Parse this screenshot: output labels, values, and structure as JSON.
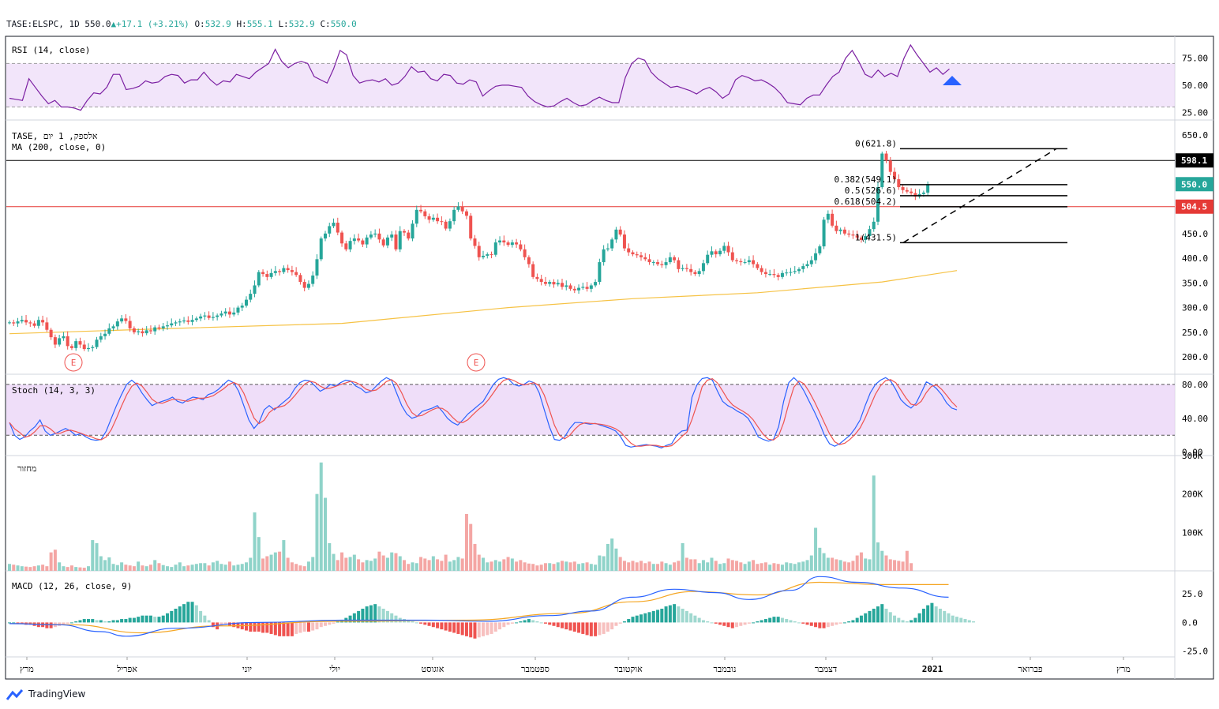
{
  "header": {
    "symbol": "TASE:ELSPC, 1D",
    "last": "550.0",
    "change": "+17.1 (+3.21%)",
    "open_label": "O:",
    "open": "532.9",
    "high_label": "H:",
    "high": "555.1",
    "low_label": "L:",
    "low": "532.9",
    "close_label": "C:",
    "close": "550.0"
  },
  "branding": {
    "name": "TradingView"
  },
  "colors": {
    "up": "#26a69a",
    "down": "#ef5350",
    "ma": "#f6c244",
    "rsi": "#7b1fa2",
    "band": "#e9d3f7",
    "macd": "#2962ff",
    "signal": "#f5a623"
  },
  "x_axis": {
    "labels": [
      "מרץ",
      "אפריל",
      "יוני",
      "יולי",
      "אוגוסט",
      "ספטמבר",
      "אוקטובר",
      "נובמבר",
      "דצמבר",
      "2021",
      "פברואר",
      "מרץ"
    ],
    "bold_label": "2021"
  },
  "chart_data": [
    {
      "name": "rsi",
      "type": "line",
      "title": "RSI (14, close)",
      "ylim": [
        18,
        95
      ],
      "ticks": [
        "75.00",
        "50.00",
        "25.00"
      ],
      "band": [
        30,
        70
      ],
      "values": [
        38,
        37,
        36,
        56,
        48,
        40,
        33,
        36,
        30,
        30,
        29,
        27,
        36,
        43,
        42,
        48,
        60,
        60,
        46,
        47,
        49,
        54,
        52,
        53,
        58,
        60,
        59,
        52,
        55,
        55,
        62,
        55,
        50,
        54,
        53,
        60,
        58,
        56,
        62,
        66,
        70,
        83,
        72,
        66,
        70,
        72,
        70,
        58,
        55,
        52,
        65,
        82,
        78,
        59,
        52,
        54,
        55,
        53,
        56,
        50,
        52,
        58,
        67,
        62,
        63,
        56,
        54,
        60,
        59,
        52,
        51,
        55,
        53,
        40,
        45,
        49,
        50,
        50,
        49,
        48,
        40,
        35,
        32,
        30,
        31,
        35,
        38,
        34,
        31,
        32,
        36,
        39,
        36,
        34,
        34,
        57,
        70,
        75,
        73,
        62,
        56,
        52,
        48,
        49,
        47,
        45,
        42,
        46,
        48,
        44,
        38,
        42,
        55,
        59,
        57,
        54,
        55,
        52,
        48,
        42,
        34,
        33,
        32,
        38,
        41,
        41,
        50,
        58,
        62,
        75,
        82,
        72,
        60,
        57,
        64,
        58,
        61,
        58,
        75,
        87,
        78,
        70,
        62,
        66,
        60,
        65
      ]
    },
    {
      "name": "price",
      "type": "candlestick",
      "legend": [
        "TASE, אלספק, 1 יום",
        "MA (200, close, 0)"
      ],
      "ylim": [
        165,
        680
      ],
      "ticks": [
        "650.0",
        "450.0",
        "400.0",
        "350.0",
        "300.0",
        "250.0",
        "200.0"
      ],
      "closes": [
        270,
        268,
        272,
        275,
        270,
        268,
        263,
        275,
        270,
        255,
        240,
        225,
        238,
        242,
        222,
        218,
        232,
        225,
        216,
        218,
        220,
        235,
        242,
        247,
        258,
        262,
        272,
        278,
        273,
        258,
        250,
        252,
        248,
        254,
        252,
        260,
        258,
        262,
        264,
        268,
        270,
        272,
        274,
        271,
        275,
        278,
        282,
        284,
        279,
        281,
        284,
        288,
        292,
        286,
        290,
        300,
        304,
        316,
        328,
        345,
        372,
        368,
        362,
        370,
        374,
        372,
        380,
        376,
        372,
        366,
        352,
        340,
        348,
        365,
        398,
        440,
        450,
        465,
        472,
        452,
        430,
        418,
        435,
        440,
        436,
        428,
        442,
        448,
        450,
        438,
        426,
        442,
        448,
        418,
        455,
        452,
        440,
        470,
        498,
        495,
        485,
        478,
        482,
        475,
        474,
        460,
        475,
        498,
        505,
        495,
        486,
        440,
        425,
        402,
        405,
        408,
        407,
        432,
        436,
        432,
        427,
        432,
        428,
        418,
        402,
        388,
        362,
        358,
        352,
        348,
        352,
        347,
        350,
        342,
        345,
        338,
        335,
        340,
        342,
        338,
        345,
        352,
        392,
        418,
        420,
        438,
        458,
        448,
        420,
        412,
        408,
        406,
        402,
        398,
        392,
        392,
        388,
        386,
        392,
        402,
        396,
        378,
        380,
        378,
        372,
        368,
        374,
        390,
        407,
        414,
        408,
        415,
        425,
        412,
        396,
        394,
        392,
        392,
        396,
        388,
        380,
        372,
        368,
        368,
        366,
        362,
        370,
        371,
        372,
        374,
        378,
        384,
        388,
        396,
        410,
        424,
        478,
        490,
        466,
        455,
        458,
        450,
        448,
        446,
        442,
        437,
        445,
        459,
        474,
        544,
        612,
        598,
        575,
        560,
        544,
        538,
        535,
        532,
        525,
        530,
        533,
        550
      ],
      "ma": [
        {
          "i": 0,
          "v": 247
        },
        {
          "i": 40,
          "v": 258
        },
        {
          "i": 80,
          "v": 268
        },
        {
          "i": 120,
          "v": 300
        },
        {
          "i": 150,
          "v": 318
        },
        {
          "i": 180,
          "v": 330
        },
        {
          "i": 210,
          "v": 352
        },
        {
          "i": 228,
          "v": 375
        }
      ],
      "fib": [
        {
          "label": "0(621.8)",
          "value": 621.8
        },
        {
          "label": "0.382(549.1)",
          "value": 549.1
        },
        {
          "label": "0.5(526.6)",
          "value": 526.6
        },
        {
          "label": "0.618(504.2)",
          "value": 504.2
        },
        {
          "label": "1(431.5)",
          "value": 431.5
        }
      ],
      "hlines": [
        {
          "label": "598.1",
          "value": 598.1,
          "color": "#000000"
        },
        {
          "label": "504.5",
          "value": 504.5,
          "color": "#e53935"
        }
      ],
      "last_label": "550.0",
      "earnings": [
        "E",
        "E"
      ]
    },
    {
      "name": "stoch",
      "type": "line",
      "title": "Stoch (14, 3, 3)",
      "ylim": [
        -4,
        92
      ],
      "ticks": [
        "80.00",
        "40.00",
        "0.00"
      ],
      "band": [
        20,
        80
      ],
      "k": [
        35,
        20,
        15,
        18,
        25,
        30,
        38,
        25,
        20,
        22,
        25,
        28,
        25,
        20,
        22,
        18,
        15,
        14,
        15,
        25,
        40,
        55,
        68,
        80,
        85,
        80,
        70,
        62,
        55,
        58,
        60,
        62,
        65,
        60,
        58,
        62,
        65,
        64,
        62,
        68,
        70,
        74,
        80,
        85,
        82,
        72,
        55,
        38,
        28,
        35,
        50,
        55,
        50,
        55,
        60,
        65,
        75,
        82,
        85,
        84,
        78,
        72,
        75,
        80,
        78,
        82,
        85,
        84,
        78,
        75,
        70,
        72,
        78,
        84,
        88,
        85,
        70,
        55,
        45,
        40,
        42,
        48,
        50,
        52,
        55,
        48,
        40,
        35,
        32,
        38,
        45,
        50,
        55,
        60,
        70,
        80,
        86,
        88,
        86,
        80,
        78,
        80,
        84,
        82,
        70,
        50,
        30,
        15,
        14,
        18,
        28,
        35,
        35,
        34,
        33,
        34,
        32,
        30,
        28,
        25,
        18,
        8,
        6,
        7,
        8,
        9,
        8,
        7,
        5,
        8,
        10,
        20,
        25,
        26,
        65,
        80,
        87,
        88,
        85,
        72,
        60,
        55,
        52,
        48,
        45,
        40,
        30,
        18,
        15,
        13,
        15,
        30,
        60,
        82,
        88,
        82,
        72,
        60,
        48,
        35,
        20,
        10,
        7,
        10,
        15,
        20,
        28,
        38,
        55,
        70,
        80,
        85,
        88,
        84,
        74,
        62,
        56,
        52,
        58,
        70,
        83,
        80,
        75,
        68,
        58,
        52,
        50
      ]
    },
    {
      "name": "volume",
      "type": "bar",
      "title": "מחזור",
      "ylim": [
        0,
        300
      ],
      "ticks": [
        "300K",
        "200K",
        "100K"
      ],
      "values": [
        18,
        16,
        14,
        12,
        11,
        10,
        12,
        14,
        16,
        12,
        48,
        55,
        22,
        12,
        10,
        14,
        10,
        9,
        8,
        12,
        80,
        72,
        38,
        28,
        35,
        18,
        15,
        22,
        16,
        14,
        12,
        24,
        14,
        12,
        16,
        28,
        20,
        15,
        12,
        10,
        16,
        22,
        12,
        14,
        16,
        18,
        20,
        20,
        14,
        22,
        26,
        18,
        16,
        24,
        14,
        16,
        18,
        22,
        34,
        152,
        88,
        32,
        38,
        42,
        48,
        50,
        80,
        34,
        22,
        18,
        14,
        12,
        24,
        36,
        200,
        282,
        190,
        72,
        44,
        28,
        48,
        34,
        36,
        42,
        30,
        22,
        28,
        26,
        32,
        50,
        40,
        34,
        48,
        46,
        38,
        28,
        18,
        22,
        20,
        36,
        32,
        28,
        38,
        30,
        26,
        42,
        24,
        28,
        36,
        32,
        148,
        122,
        70,
        42,
        34,
        22,
        24,
        28,
        24,
        30,
        36,
        32,
        24,
        28,
        22,
        19,
        18,
        14,
        16,
        20,
        20,
        18,
        22,
        26,
        24,
        22,
        24,
        18,
        20,
        22,
        18,
        16,
        40,
        38,
        70,
        84,
        58,
        36,
        26,
        22,
        26,
        22,
        26,
        20,
        24,
        18,
        18,
        24,
        20,
        16,
        22,
        26,
        72,
        34,
        30,
        30,
        20,
        28,
        22,
        34,
        26,
        18,
        20,
        32,
        28,
        26,
        22,
        18,
        24,
        28,
        18,
        20,
        22,
        16,
        20,
        18,
        16,
        22,
        20,
        18,
        22,
        24,
        28,
        40,
        112,
        60,
        46,
        34,
        34,
        30,
        28,
        24,
        22,
        26,
        40,
        48,
        32,
        30,
        248,
        74,
        52,
        40,
        30,
        28,
        26,
        24,
        52,
        20
      ]
    },
    {
      "name": "macd",
      "type": "line",
      "title": "MACD (12, 26, close, 9)",
      "ylim": [
        -30,
        45
      ],
      "ticks": [
        "25.0",
        "0.0",
        "-25.0"
      ],
      "macd": [
        {
          "i": 0,
          "v": -1
        },
        {
          "i": 12,
          "v": -2
        },
        {
          "i": 22,
          "v": -8
        },
        {
          "i": 28,
          "v": -12
        },
        {
          "i": 40,
          "v": -5
        },
        {
          "i": 60,
          "v": 0
        },
        {
          "i": 80,
          "v": 2
        },
        {
          "i": 100,
          "v": 2
        },
        {
          "i": 115,
          "v": 1
        },
        {
          "i": 130,
          "v": 6
        },
        {
          "i": 140,
          "v": 10
        },
        {
          "i": 150,
          "v": 22
        },
        {
          "i": 160,
          "v": 29
        },
        {
          "i": 170,
          "v": 26
        },
        {
          "i": 178,
          "v": 20
        },
        {
          "i": 188,
          "v": 28
        },
        {
          "i": 195,
          "v": 40
        },
        {
          "i": 204,
          "v": 35
        },
        {
          "i": 215,
          "v": 30
        },
        {
          "i": 226,
          "v": 22
        }
      ],
      "signal": [
        {
          "i": 0,
          "v": -1
        },
        {
          "i": 15,
          "v": -2
        },
        {
          "i": 32,
          "v": -9
        },
        {
          "i": 50,
          "v": -3
        },
        {
          "i": 80,
          "v": 1
        },
        {
          "i": 110,
          "v": 2
        },
        {
          "i": 135,
          "v": 8
        },
        {
          "i": 150,
          "v": 18
        },
        {
          "i": 165,
          "v": 27
        },
        {
          "i": 180,
          "v": 24
        },
        {
          "i": 195,
          "v": 35
        },
        {
          "i": 210,
          "v": 33
        },
        {
          "i": 226,
          "v": 33
        }
      ],
      "hist": [
        0,
        0,
        -1,
        -1,
        -2,
        -2,
        -3,
        -4,
        -4,
        -5,
        -5,
        -4,
        -3,
        -2,
        -1,
        0,
        1,
        2,
        3,
        3,
        3,
        2,
        2,
        1,
        1,
        2,
        2,
        3,
        3,
        4,
        4,
        5,
        6,
        6,
        6,
        5,
        5,
        6,
        8,
        10,
        12,
        14,
        16,
        18,
        18,
        15,
        10,
        6,
        2,
        -4,
        -6,
        -3,
        -2,
        -3,
        -4,
        -5,
        -6,
        -7,
        -8,
        -8,
        -8,
        -9,
        -9,
        -10,
        -11,
        -12,
        -12,
        -12,
        -12,
        -10,
        -9,
        -8,
        -8,
        -7,
        -6,
        -4,
        -3,
        -2,
        -1,
        1,
        2,
        4,
        6,
        8,
        10,
        12,
        14,
        15,
        16,
        14,
        12,
        10,
        8,
        6,
        4,
        3,
        2,
        1,
        0,
        -1,
        -2,
        -3,
        -4,
        -5,
        -6,
        -7,
        -8,
        -9,
        -10,
        -11,
        -12,
        -13,
        -14,
        -13,
        -12,
        -11,
        -10,
        -8,
        -6,
        -4,
        -2,
        -1,
        0,
        1,
        2,
        3,
        2,
        1,
        0,
        -1,
        -2,
        -3,
        -4,
        -5,
        -6,
        -7,
        -8,
        -9,
        -10,
        -11,
        -12,
        -12,
        -11,
        -10,
        -8,
        -6,
        -3,
        -1,
        1,
        3,
        5,
        6,
        7,
        8,
        9,
        10,
        11,
        12,
        14,
        15,
        16,
        14,
        12,
        10,
        8,
        6,
        4,
        2,
        1,
        0,
        -1,
        -2,
        -3,
        -4,
        -5,
        -4,
        -3,
        -2,
        -1,
        0,
        1,
        2,
        3,
        4,
        5,
        5,
        4,
        3,
        2,
        1,
        0,
        -1,
        -2,
        -3,
        -4,
        -5,
        -5,
        -4,
        -3,
        -2,
        -1,
        0,
        1,
        2,
        4,
        6,
        8,
        10,
        12,
        14,
        16,
        12,
        9,
        6,
        4,
        2,
        1,
        2,
        4,
        8,
        12,
        15,
        17,
        14,
        12,
        10,
        8,
        6,
        5,
        4,
        3,
        2,
        1
      ]
    }
  ]
}
